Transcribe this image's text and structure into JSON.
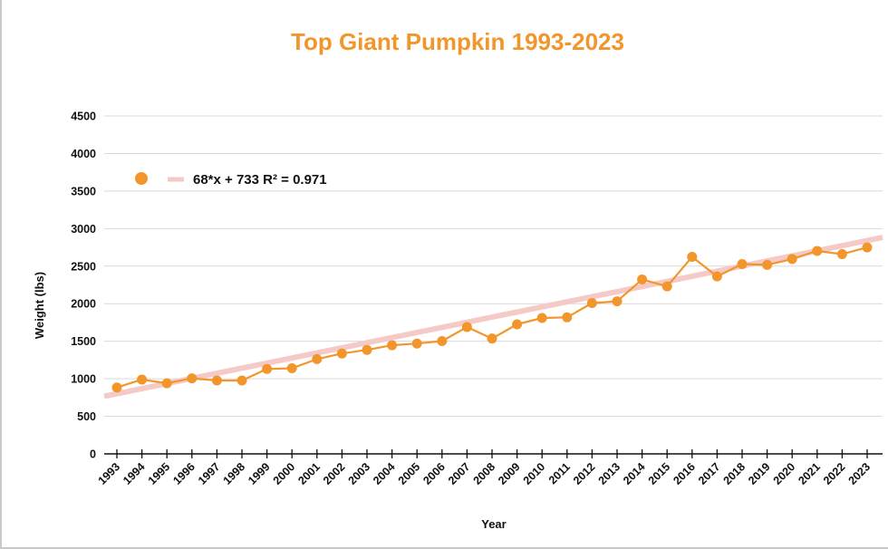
{
  "colors": {
    "series": "#f2962b",
    "title": "#f2962b",
    "trendline": "#f5c9c6",
    "grid": "#d9d9d9",
    "axis": "#111111"
  },
  "chart_data": {
    "type": "line",
    "title": "Top Giant Pumpkin 1993-2023",
    "xlabel": "Year",
    "ylabel": "Weight (lbs)",
    "ylim": [
      0,
      4500
    ],
    "yticks": [
      0,
      500,
      1000,
      1500,
      2000,
      2500,
      3000,
      3500,
      4000,
      4500
    ],
    "grid": true,
    "legend_position": "top-left",
    "categories": [
      "1993",
      "1994",
      "1995",
      "1996",
      "1997",
      "1998",
      "1999",
      "2000",
      "2001",
      "2002",
      "2003",
      "2004",
      "2005",
      "2006",
      "2007",
      "2008",
      "2009",
      "2010",
      "2011",
      "2012",
      "2013",
      "2014",
      "2015",
      "2016",
      "2017",
      "2018",
      "2019",
      "2020",
      "2021",
      "2022",
      "2023"
    ],
    "series": [
      {
        "values": [
          884,
          990,
          940,
          1006,
          977,
          977,
          1131,
          1140,
          1262,
          1337,
          1385,
          1446,
          1469,
          1502,
          1689,
          1536,
          1725,
          1810,
          1818,
          2009,
          2032,
          2323,
          2230,
          2624,
          2363,
          2528,
          2517,
          2595,
          2703,
          2660,
          2749
        ]
      }
    ],
    "trendline": {
      "label": "68*x + 733 R² = 0.971",
      "slope": 68,
      "intercept": 733,
      "r_squared": 0.971
    }
  }
}
